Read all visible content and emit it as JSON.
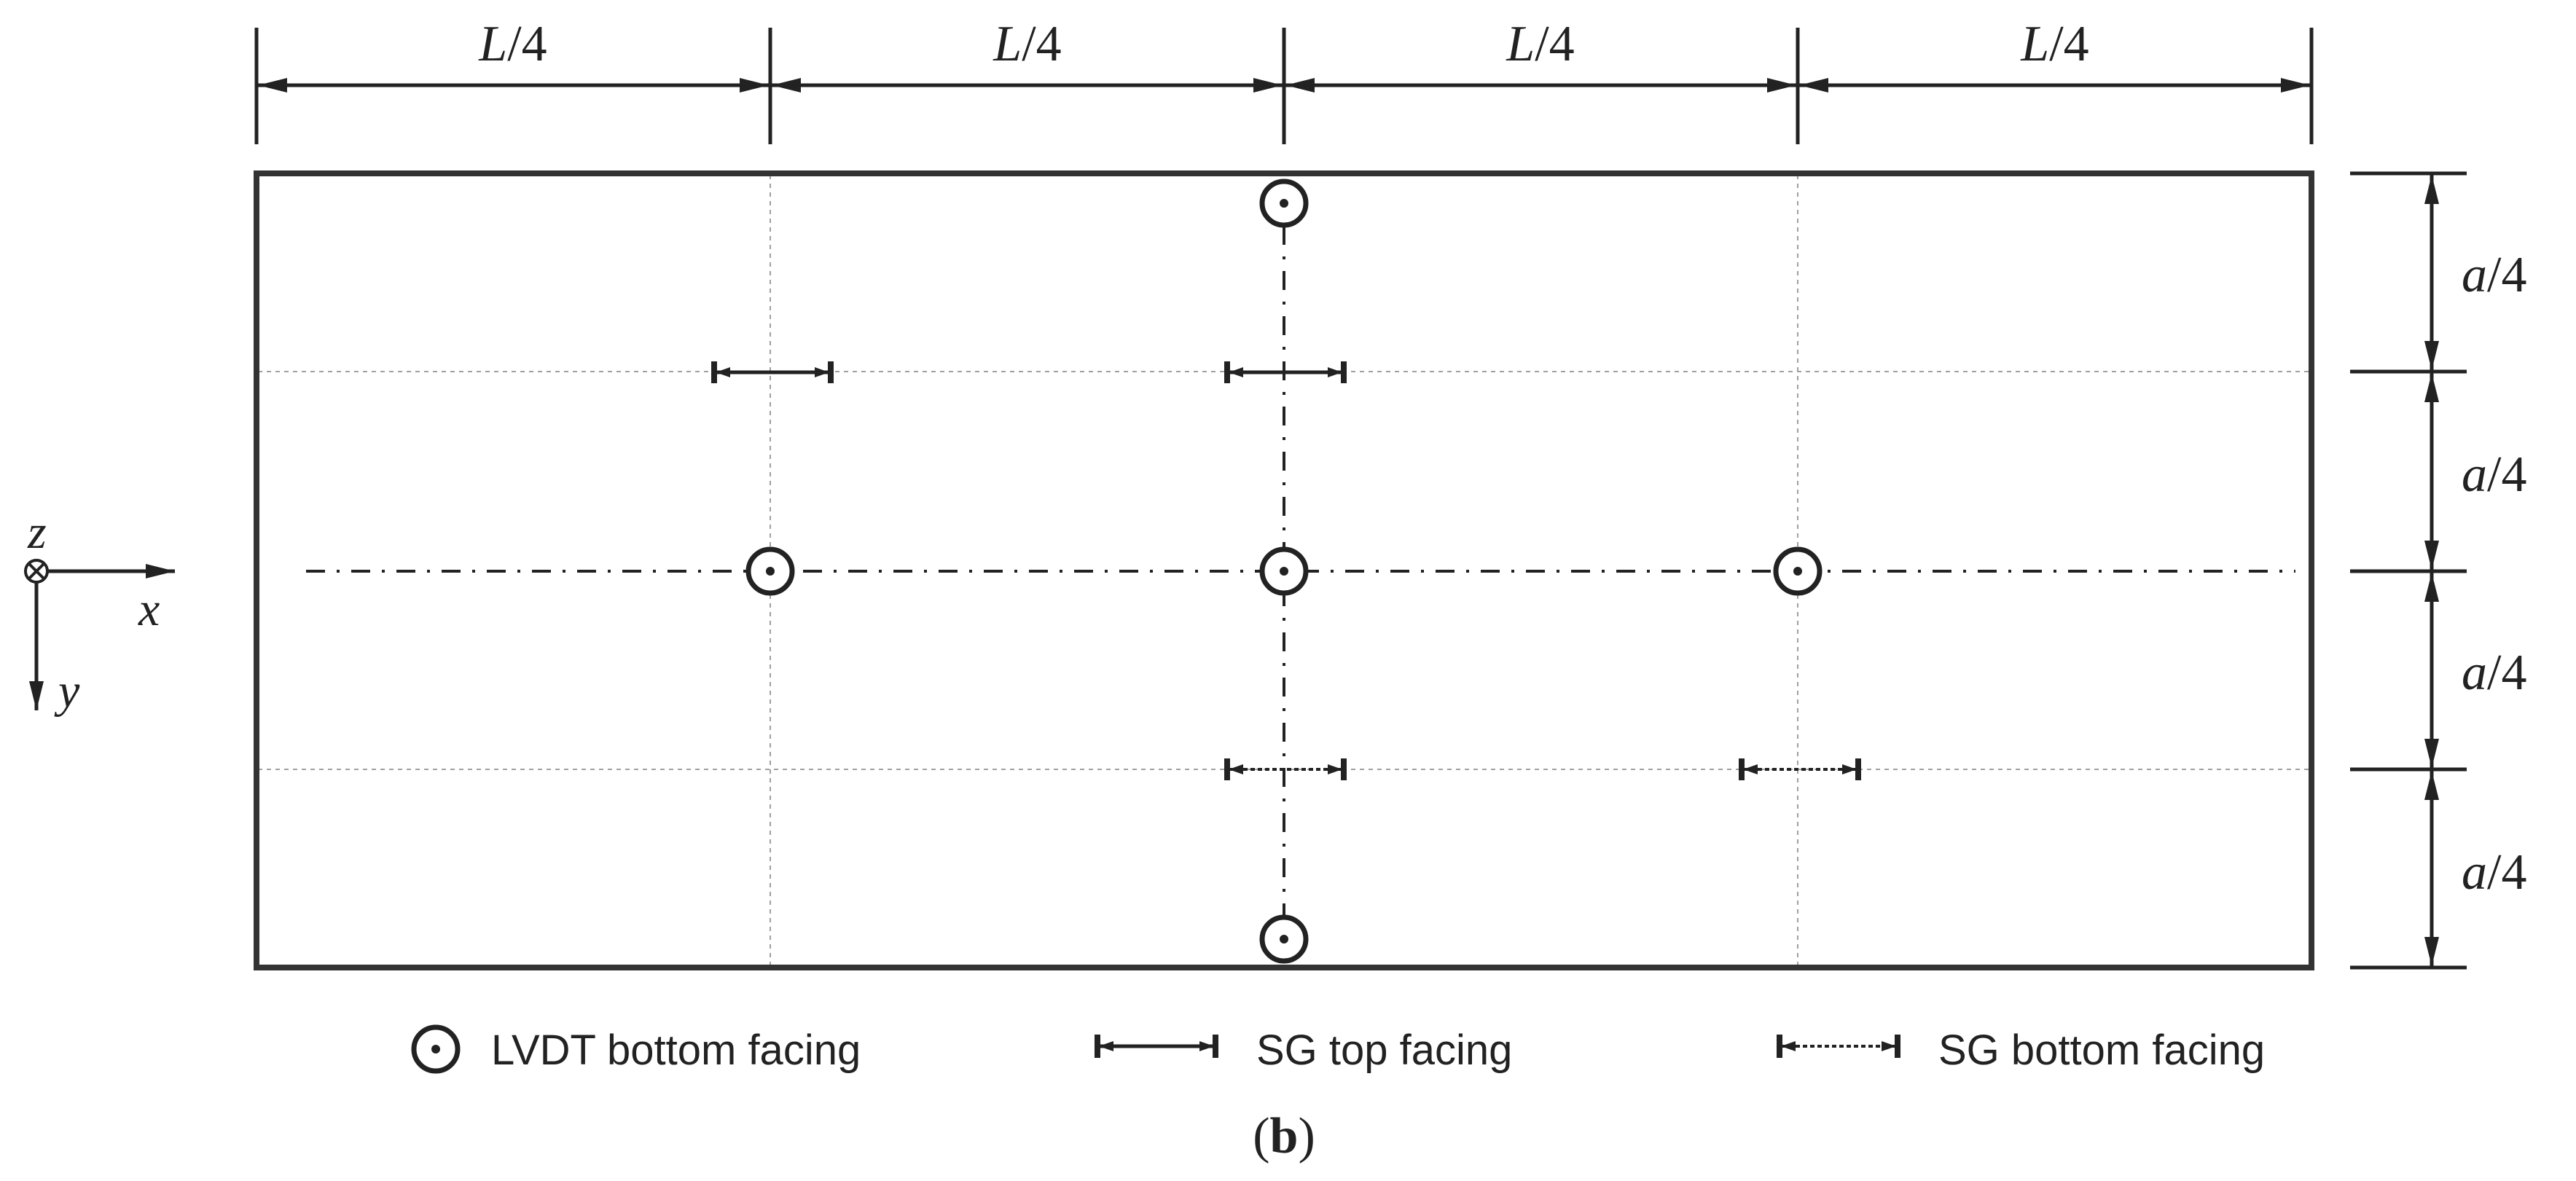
{
  "dimensions": {
    "length_label": "L",
    "width_label": "a",
    "divisor": "/4"
  },
  "axes": {
    "z": "z",
    "x": "x",
    "y": "y"
  },
  "legend": {
    "lvdt": "LVDT bottom facing",
    "sg_top": "SG top facing",
    "sg_bottom": "SG bottom facing"
  },
  "caption": {
    "open": "(",
    "letter": "b",
    "close": ")"
  }
}
